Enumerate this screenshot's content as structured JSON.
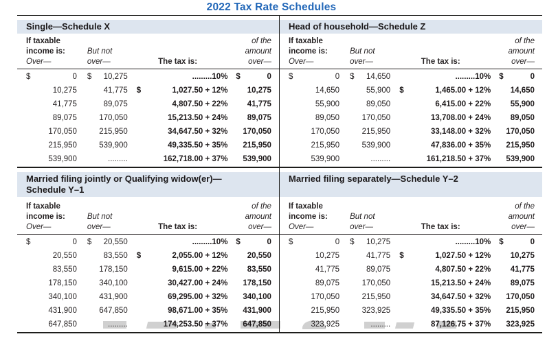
{
  "title": "2022 Tax Rate Schedules",
  "colors": {
    "title_blue": "#2267b8",
    "band_background": "#dde5ef",
    "rule_black": "#1d1d1b",
    "text": "#262223",
    "watermark_gray": "#d0d0d0"
  },
  "column_headers": {
    "if_taxable_line1": "If taxable",
    "if_taxable_line2": "income is:",
    "over": "Over—",
    "but_not_line1": "But not",
    "but_not_line2": "over—",
    "tax_is": "The tax is:",
    "amount_line1": "of the",
    "amount_line2": "amount",
    "amount_line3": "over—"
  },
  "schedules": [
    {
      "id": "single",
      "title_lines": [
        "Single—Schedule X"
      ],
      "rows": [
        [
          [
            "$",
            "0"
          ],
          [
            "$",
            "10,275"
          ],
          [
            "",
            ".........10%"
          ],
          [
            "$",
            "0"
          ]
        ],
        [
          [
            "",
            "10,275"
          ],
          [
            "",
            "41,775"
          ],
          [
            "$",
            "1,027.50 + 12%"
          ],
          [
            "",
            "10,275"
          ]
        ],
        [
          [
            "",
            "41,775"
          ],
          [
            "",
            "89,075"
          ],
          [
            "",
            "4,807.50 + 22%"
          ],
          [
            "",
            "41,775"
          ]
        ],
        [
          [
            "",
            "89,075"
          ],
          [
            "",
            "170,050"
          ],
          [
            "",
            "15,213.50 + 24%"
          ],
          [
            "",
            "89,075"
          ]
        ],
        [
          [
            "",
            "170,050"
          ],
          [
            "",
            "215,950"
          ],
          [
            "",
            "34,647.50 + 32%"
          ],
          [
            "",
            "170,050"
          ]
        ],
        [
          [
            "",
            "215,950"
          ],
          [
            "",
            "539,900"
          ],
          [
            "",
            "49,335.50 + 35%"
          ],
          [
            "",
            "215,950"
          ]
        ],
        [
          [
            "",
            "539,900"
          ],
          [
            "",
            "........."
          ],
          [
            "",
            "162,718.00 + 37%"
          ],
          [
            "",
            "539,900"
          ]
        ]
      ]
    },
    {
      "id": "head-of-household",
      "title_lines": [
        "Head of household—Schedule Z"
      ],
      "rows": [
        [
          [
            "$",
            "0"
          ],
          [
            "$",
            "14,650"
          ],
          [
            "",
            ".........10%"
          ],
          [
            "$",
            "0"
          ]
        ],
        [
          [
            "",
            "14,650"
          ],
          [
            "",
            "55,900"
          ],
          [
            "$",
            "1,465.00 + 12%"
          ],
          [
            "",
            "14,650"
          ]
        ],
        [
          [
            "",
            "55,900"
          ],
          [
            "",
            "89,050"
          ],
          [
            "",
            "6,415.00 + 22%"
          ],
          [
            "",
            "55,900"
          ]
        ],
        [
          [
            "",
            "89,050"
          ],
          [
            "",
            "170,050"
          ],
          [
            "",
            "13,708.00 + 24%"
          ],
          [
            "",
            "89,050"
          ]
        ],
        [
          [
            "",
            "170,050"
          ],
          [
            "",
            "215,950"
          ],
          [
            "",
            "33,148.00 + 32%"
          ],
          [
            "",
            "170,050"
          ]
        ],
        [
          [
            "",
            "215,950"
          ],
          [
            "",
            "539,900"
          ],
          [
            "",
            "47,836.00 + 35%"
          ],
          [
            "",
            "215,950"
          ]
        ],
        [
          [
            "",
            "539,900"
          ],
          [
            "",
            "........."
          ],
          [
            "",
            "161,218.50 + 37%"
          ],
          [
            "",
            "539,900"
          ]
        ]
      ]
    },
    {
      "id": "married-filing-jointly",
      "title_lines": [
        "Married filing jointly or Qualifying widow(er)—",
        "Schedule Y–1"
      ],
      "rows": [
        [
          [
            "$",
            "0"
          ],
          [
            "$",
            "20,550"
          ],
          [
            "",
            ".........10%"
          ],
          [
            "$",
            "0"
          ]
        ],
        [
          [
            "",
            "20,550"
          ],
          [
            "",
            "83,550"
          ],
          [
            "$",
            "2,055.00 + 12%"
          ],
          [
            "",
            "20,550"
          ]
        ],
        [
          [
            "",
            "83,550"
          ],
          [
            "",
            "178,150"
          ],
          [
            "",
            "9,615.00 + 22%"
          ],
          [
            "",
            "83,550"
          ]
        ],
        [
          [
            "",
            "178,150"
          ],
          [
            "",
            "340,100"
          ],
          [
            "",
            "30,427.00 + 24%"
          ],
          [
            "",
            "178,150"
          ]
        ],
        [
          [
            "",
            "340,100"
          ],
          [
            "",
            "431,900"
          ],
          [
            "",
            "69,295.00 + 32%"
          ],
          [
            "",
            "340,100"
          ]
        ],
        [
          [
            "",
            "431,900"
          ],
          [
            "",
            "647,850"
          ],
          [
            "",
            "98,671.00 + 35%"
          ],
          [
            "",
            "431,900"
          ]
        ],
        [
          [
            "",
            "647,850"
          ],
          [
            "",
            "........."
          ],
          [
            "",
            "174,253.50 + 37%"
          ],
          [
            "",
            "647,850"
          ]
        ]
      ]
    },
    {
      "id": "married-filing-separately",
      "title_lines": [
        "Married filing separately—Schedule Y–2"
      ],
      "rows": [
        [
          [
            "$",
            "0"
          ],
          [
            "$",
            "10,275"
          ],
          [
            "",
            ".........10%"
          ],
          [
            "$",
            "0"
          ]
        ],
        [
          [
            "",
            "10,275"
          ],
          [
            "",
            "41,775"
          ],
          [
            "$",
            "1,027.50 + 12%"
          ],
          [
            "",
            "10,275"
          ]
        ],
        [
          [
            "",
            "41,775"
          ],
          [
            "",
            "89,075"
          ],
          [
            "",
            "4,807.50 + 22%"
          ],
          [
            "",
            "41,775"
          ]
        ],
        [
          [
            "",
            "89,075"
          ],
          [
            "",
            "170,050"
          ],
          [
            "",
            "15,213.50 + 24%"
          ],
          [
            "",
            "89,075"
          ]
        ],
        [
          [
            "",
            "170,050"
          ],
          [
            "",
            "215,950"
          ],
          [
            "",
            "34,647.50 + 32%"
          ],
          [
            "",
            "170,050"
          ]
        ],
        [
          [
            "",
            "215,950"
          ],
          [
            "",
            "323,925"
          ],
          [
            "",
            "49,335.50 + 35%"
          ],
          [
            "",
            "215,950"
          ]
        ],
        [
          [
            "",
            "323,925"
          ],
          [
            "",
            "........."
          ],
          [
            "",
            "87,126.75 + 37%"
          ],
          [
            "",
            "323,925"
          ]
        ]
      ]
    }
  ]
}
